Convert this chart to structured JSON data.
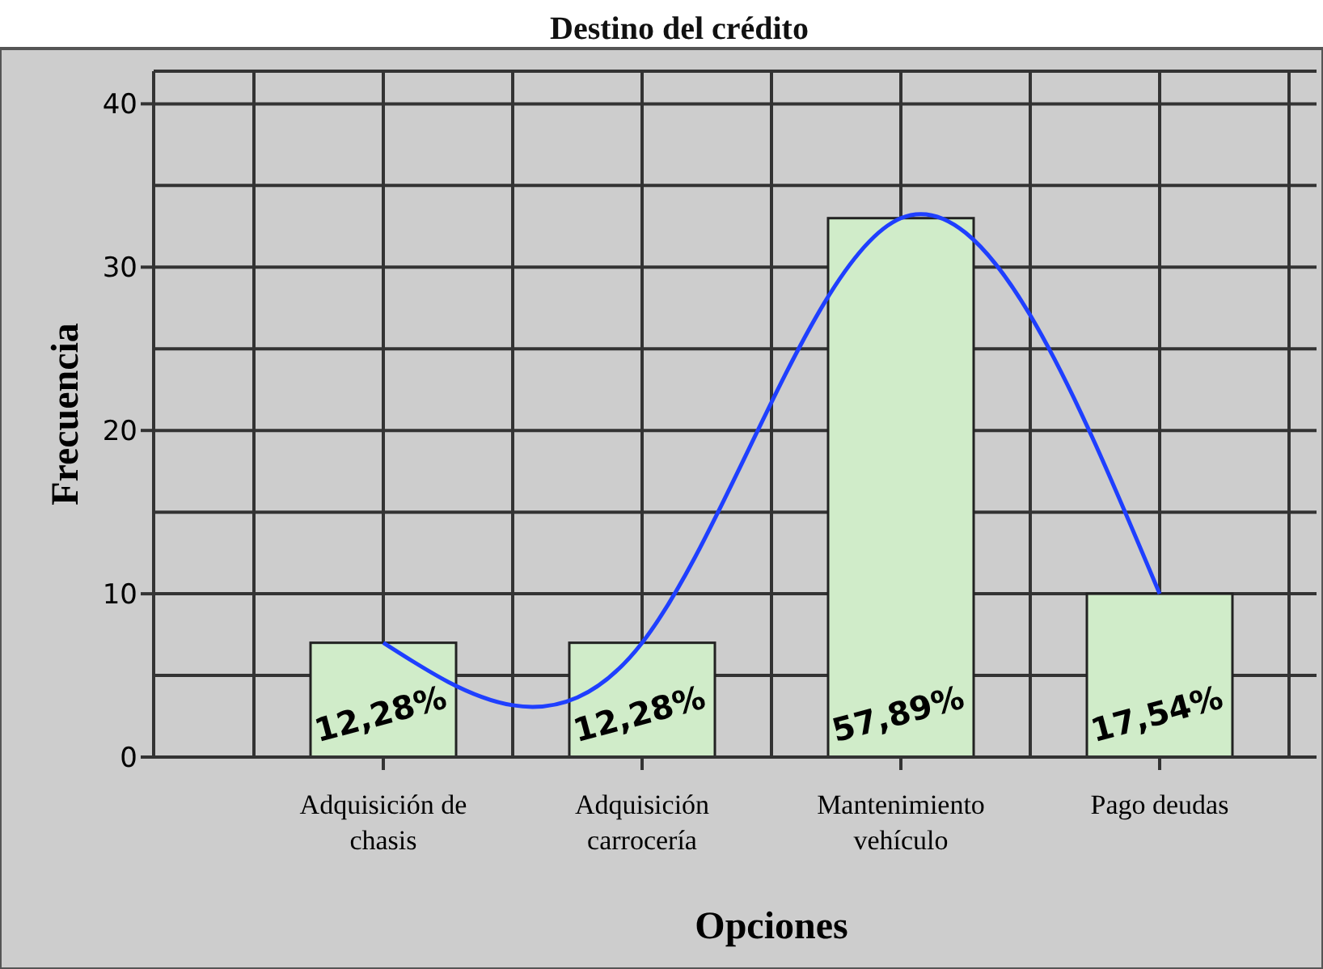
{
  "chart_data": {
    "type": "bar",
    "title": "Destino del crédito",
    "xlabel": "Opciones",
    "ylabel": "Frecuencia",
    "categories": [
      "Adquisición de\nchasis",
      "Adquisición\ncarrocería",
      "Mantenimiento\nvehículo",
      "Pago deudas"
    ],
    "series": [
      {
        "color": "#d0ecc9",
        "values": [
          7,
          7,
          33,
          10
        ]
      },
      {
        "type": "line",
        "color": "#1f3fff",
        "values": [
          7,
          7,
          33,
          10
        ]
      }
    ],
    "ylim": [
      0,
      42
    ],
    "yticks": [
      0,
      {
        "value": 5,
        "label": null
      },
      10,
      {
        "value": 15,
        "label": null
      },
      20,
      {
        "value": 25,
        "label": null
      },
      30,
      {
        "value": 35,
        "label": null
      },
      40
    ],
    "grid": true,
    "legend": false,
    "annotations": [
      "12,28%",
      "12,28%",
      "57,89%",
      "17,54%"
    ]
  }
}
